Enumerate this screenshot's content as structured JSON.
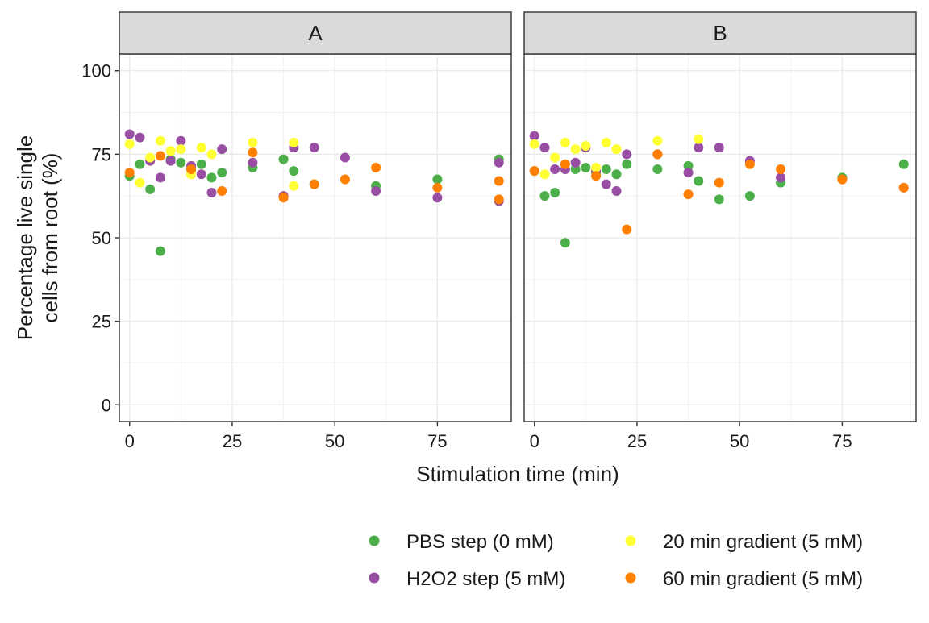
{
  "chart_data": {
    "type": "scatter",
    "xlabel": "Stimulation time (min)",
    "ylabel_lines": [
      "Percentage live single",
      "cells from root (%)"
    ],
    "xlim": [
      -2.5,
      93
    ],
    "ylim": [
      -5,
      105
    ],
    "xticks": [
      0,
      25,
      50,
      75
    ],
    "yticks": [
      0,
      25,
      50,
      75,
      100
    ],
    "grid": true,
    "legend_position": "bottom",
    "series_colors": {
      "pbs": "#4daf4a",
      "h2o2": "#984ea3",
      "grad20": "#ffff33",
      "grad60": "#ff7f00"
    },
    "legend": [
      {
        "key": "pbs",
        "label": "PBS step (0 mM)"
      },
      {
        "key": "grad20",
        "label": "20 min gradient (5 mM)"
      },
      {
        "key": "h2o2",
        "label": "H2O2 step (5 mM)"
      },
      {
        "key": "grad60",
        "label": "60 min gradient (5 mM)"
      }
    ],
    "panels": [
      {
        "label": "A",
        "series": {
          "pbs": [
            [
              0,
              68.5
            ],
            [
              2.5,
              72
            ],
            [
              5,
              64.5
            ],
            [
              7.5,
              46
            ],
            [
              10,
              73.5
            ],
            [
              12.5,
              72.5
            ],
            [
              15,
              70.5
            ],
            [
              17.5,
              72
            ],
            [
              20,
              68
            ],
            [
              22.5,
              69.5
            ],
            [
              30,
              71
            ],
            [
              37.5,
              73.5
            ],
            [
              40,
              70
            ],
            [
              45,
              66
            ],
            [
              52.5,
              67.5
            ],
            [
              60,
              65.5
            ],
            [
              75,
              67.5
            ],
            [
              90,
              73.5
            ]
          ],
          "h2o2": [
            [
              0,
              81
            ],
            [
              2.5,
              80
            ],
            [
              5,
              73
            ],
            [
              7.5,
              68
            ],
            [
              10,
              73
            ],
            [
              12.5,
              79
            ],
            [
              15,
              71.5
            ],
            [
              17.5,
              69
            ],
            [
              20,
              63.5
            ],
            [
              22.5,
              76.5
            ],
            [
              30,
              72.5
            ],
            [
              37.5,
              62.5
            ],
            [
              40,
              77
            ],
            [
              45,
              77
            ],
            [
              52.5,
              74
            ],
            [
              60,
              64
            ],
            [
              75,
              62
            ],
            [
              90,
              61
            ],
            [
              90,
              72.5
            ]
          ],
          "grad20": [
            [
              0,
              78
            ],
            [
              2.5,
              66.5
            ],
            [
              5,
              74
            ],
            [
              7.5,
              79
            ],
            [
              10,
              76
            ],
            [
              12.5,
              76.5
            ],
            [
              15,
              69
            ],
            [
              17.5,
              77
            ],
            [
              20,
              75
            ],
            [
              30,
              78.5
            ],
            [
              40,
              65.5
            ],
            [
              40,
              78.5
            ]
          ],
          "grad60": [
            [
              0,
              69.5
            ],
            [
              7.5,
              74.5
            ],
            [
              15,
              70.5
            ],
            [
              22.5,
              64
            ],
            [
              30,
              75.5
            ],
            [
              37.5,
              62
            ],
            [
              45,
              66
            ],
            [
              52.5,
              67.5
            ],
            [
              60,
              71
            ],
            [
              75,
              65
            ],
            [
              90,
              67
            ],
            [
              90,
              61.5
            ]
          ]
        }
      },
      {
        "label": "B",
        "series": {
          "pbs": [
            [
              0,
              70
            ],
            [
              2.5,
              62.5
            ],
            [
              5,
              63.5
            ],
            [
              7.5,
              48.5
            ],
            [
              10,
              70.5
            ],
            [
              12.5,
              71
            ],
            [
              15,
              69.5
            ],
            [
              17.5,
              70.5
            ],
            [
              20,
              69
            ],
            [
              22.5,
              72
            ],
            [
              30,
              70.5
            ],
            [
              37.5,
              71.5
            ],
            [
              40,
              67
            ],
            [
              45,
              61.5
            ],
            [
              52.5,
              62.5
            ],
            [
              60,
              66.5
            ],
            [
              75,
              68
            ],
            [
              90,
              72
            ]
          ],
          "h2o2": [
            [
              0,
              80.5
            ],
            [
              2.5,
              77
            ],
            [
              5,
              70.5
            ],
            [
              7.5,
              70.5
            ],
            [
              10,
              72.5
            ],
            [
              12.5,
              77
            ],
            [
              15,
              70
            ],
            [
              17.5,
              66
            ],
            [
              20,
              64
            ],
            [
              22.5,
              75
            ],
            [
              30,
              75
            ],
            [
              37.5,
              69.5
            ],
            [
              40,
              77
            ],
            [
              45,
              77
            ],
            [
              52.5,
              73
            ],
            [
              60,
              68
            ],
            [
              75,
              67.5
            ],
            [
              90,
              65
            ]
          ],
          "grad20": [
            [
              0,
              78
            ],
            [
              2.5,
              69
            ],
            [
              5,
              74
            ],
            [
              7.5,
              78.5
            ],
            [
              10,
              76.5
            ],
            [
              12.5,
              77.5
            ],
            [
              15,
              71
            ],
            [
              17.5,
              78.5
            ],
            [
              20,
              76.5
            ],
            [
              30,
              79
            ],
            [
              40,
              79.5
            ]
          ],
          "grad60": [
            [
              0,
              70
            ],
            [
              7.5,
              72
            ],
            [
              15,
              68.5
            ],
            [
              22.5,
              52.5
            ],
            [
              30,
              75
            ],
            [
              37.5,
              63
            ],
            [
              45,
              66.5
            ],
            [
              52.5,
              72
            ],
            [
              60,
              70.5
            ],
            [
              75,
              67.5
            ],
            [
              90,
              65
            ]
          ]
        }
      }
    ]
  }
}
